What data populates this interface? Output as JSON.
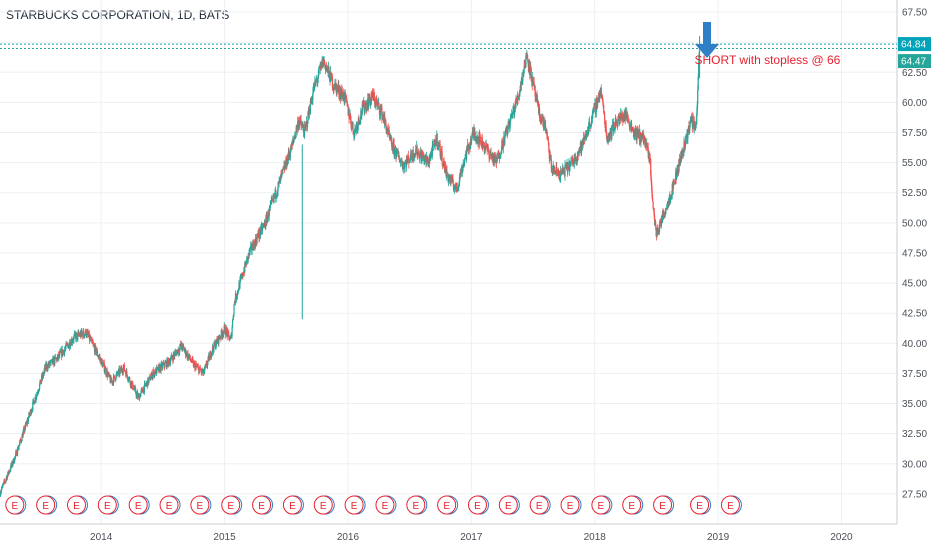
{
  "header": {
    "title": "STARBUCKS CORPORATION, 1D, BATS"
  },
  "price_tags": {
    "upper": "64.84",
    "lower": "64.47"
  },
  "annotation": {
    "text": "SHORT with stopless @ 66"
  },
  "colors": {
    "up": "#26a69a",
    "down": "#ef5350",
    "grid": "#edf0f3",
    "axis_text": "#4a4f55",
    "tag_upper": "#00a3b8",
    "tag_lower": "#26a69a",
    "arrow": "#2f7fc6",
    "earnings_red": "#e8212f",
    "earnings_blue": "#2f7fc6"
  },
  "chart_data": {
    "type": "candlestick",
    "title": "STARBUCKS CORPORATION, 1D, BATS",
    "x_range": [
      2013.18,
      2020.45
    ],
    "ylim": [
      25,
      68.5
    ],
    "y_ticks": [
      27.5,
      30,
      32.5,
      35,
      37.5,
      40,
      42.5,
      45,
      47.5,
      50,
      52.5,
      55,
      57.5,
      60,
      62.5,
      65,
      67.5
    ],
    "x_ticks": [
      "2014",
      "2015",
      "2016",
      "2017",
      "2018",
      "2019",
      "2020"
    ],
    "x_tick_years": [
      2014,
      2015,
      2016,
      2017,
      2018,
      2019,
      2020
    ],
    "price_path": [
      [
        2013.18,
        27.6
      ],
      [
        2013.3,
        30.5
      ],
      [
        2013.45,
        35.0
      ],
      [
        2013.55,
        38.0
      ],
      [
        2013.65,
        38.8
      ],
      [
        2013.78,
        40.5
      ],
      [
        2013.88,
        40.9
      ],
      [
        2014.0,
        38.5
      ],
      [
        2014.08,
        36.8
      ],
      [
        2014.18,
        38.0
      ],
      [
        2014.3,
        35.5
      ],
      [
        2014.42,
        37.5
      ],
      [
        2014.55,
        38.5
      ],
      [
        2014.65,
        39.8
      ],
      [
        2014.75,
        38.2
      ],
      [
        2014.83,
        37.5
      ],
      [
        2014.9,
        39.5
      ],
      [
        2015.0,
        41.2
      ],
      [
        2015.05,
        40.2
      ],
      [
        2015.08,
        43.5
      ],
      [
        2015.2,
        47.5
      ],
      [
        2015.33,
        50.0
      ],
      [
        2015.45,
        53.5
      ],
      [
        2015.55,
        56.5
      ],
      [
        2015.6,
        58.5
      ],
      [
        2015.65,
        57.5
      ],
      [
        2015.72,
        61.0
      ],
      [
        2015.8,
        63.5
      ],
      [
        2015.88,
        61.5
      ],
      [
        2015.97,
        60.5
      ],
      [
        2016.05,
        57.5
      ],
      [
        2016.12,
        59.5
      ],
      [
        2016.2,
        60.5
      ],
      [
        2016.28,
        59.0
      ],
      [
        2016.35,
        56.5
      ],
      [
        2016.45,
        54.8
      ],
      [
        2016.55,
        56.0
      ],
      [
        2016.65,
        55.0
      ],
      [
        2016.72,
        57.0
      ],
      [
        2016.8,
        54.0
      ],
      [
        2016.88,
        52.8
      ],
      [
        2016.95,
        55.5
      ],
      [
        2017.02,
        57.5
      ],
      [
        2017.1,
        56.5
      ],
      [
        2017.2,
        55.0
      ],
      [
        2017.3,
        58.0
      ],
      [
        2017.38,
        60.5
      ],
      [
        2017.45,
        64.0
      ],
      [
        2017.5,
        61.5
      ],
      [
        2017.55,
        59.0
      ],
      [
        2017.6,
        58.0
      ],
      [
        2017.65,
        54.5
      ],
      [
        2017.72,
        54.0
      ],
      [
        2017.82,
        55.0
      ],
      [
        2017.9,
        56.5
      ],
      [
        2017.97,
        58.5
      ],
      [
        2018.05,
        61.0
      ],
      [
        2018.1,
        57.0
      ],
      [
        2018.18,
        58.5
      ],
      [
        2018.25,
        59.0
      ],
      [
        2018.32,
        57.5
      ],
      [
        2018.4,
        57.0
      ],
      [
        2018.45,
        55.0
      ],
      [
        2018.47,
        51.5
      ],
      [
        2018.5,
        49.0
      ],
      [
        2018.55,
        50.5
      ],
      [
        2018.62,
        52.5
      ],
      [
        2018.7,
        55.5
      ],
      [
        2018.78,
        58.5
      ],
      [
        2018.82,
        58.0
      ],
      [
        2018.85,
        64.3
      ]
    ],
    "series": [
      {
        "name": "up",
        "color": "#26a69a"
      },
      {
        "name": "down",
        "color": "#ef5350"
      }
    ],
    "earnings_markers": [
      2013.3,
      2013.55,
      2013.8,
      2014.05,
      2014.3,
      2014.55,
      2014.8,
      2015.05,
      2015.3,
      2015.55,
      2015.8,
      2016.05,
      2016.3,
      2016.55,
      2016.8,
      2017.05,
      2017.3,
      2017.55,
      2017.8,
      2018.05,
      2018.3,
      2018.55,
      2018.85,
      2019.1
    ],
    "earnings_label": "E",
    "horizontal_lines": [
      64.84,
      64.47
    ],
    "grid": true
  }
}
